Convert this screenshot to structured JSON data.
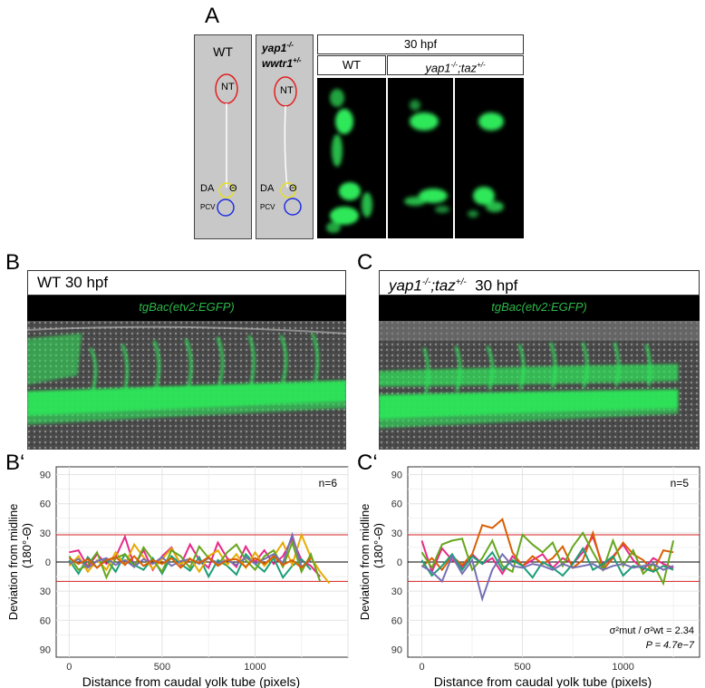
{
  "panelA": {
    "letter": "A",
    "wt_schematic": {
      "title": "WT",
      "nt": "NT",
      "da": "DA",
      "theta": "Θ",
      "pcv": "PCV"
    },
    "mut_schematic": {
      "title_line1": "yap1",
      "title_line1_sup": "-/-",
      "title_line2": "wwtr1",
      "title_line2_sup": "+/-",
      "nt": "NT",
      "da": "DA",
      "theta": "Θ",
      "pcv": "PCV"
    },
    "stage_header": "30 hpf",
    "col_wt": "WT",
    "col_mut_base": "yap1",
    "col_mut_sup1": "-/-",
    "col_mut_mid": ";taz",
    "col_mut_sup2": "+/-"
  },
  "panelB": {
    "letter": "B",
    "title": "WT  30 hpf",
    "transgene": "tgBac(etv2:EGFP)"
  },
  "panelC": {
    "letter": "C",
    "title_gene": "yap1",
    "title_sup1": "-/-",
    "title_mid": ";taz",
    "title_sup2": "+/-",
    "title_stage": "  30 hpf",
    "transgene": "tgBac(etv2:EGFP)"
  },
  "colors": {
    "green": "#2ee85a",
    "red_line": "#d62020",
    "grid": "#e6e6e6"
  },
  "chart_data": [
    {
      "letter": "B‘",
      "type": "line",
      "n_label": "n=6",
      "xlabel": "Distance from caudal yolk tube (pixels)",
      "ylabel_line1": "Deviation from midline",
      "ylabel_line2": "(180°-Θ)",
      "xlim": [
        -70,
        1500
      ],
      "ylim": [
        -98,
        98
      ],
      "xticks": [
        0,
        500,
        1000
      ],
      "yticks": [
        -90,
        -60,
        -30,
        0,
        30,
        60,
        90
      ],
      "ytick_labels": [
        "90",
        "60",
        "30",
        "0",
        "30",
        "60",
        "90"
      ],
      "hlines": [
        28,
        -20
      ],
      "series": [
        {
          "name": "s1",
          "color": "#e7298a",
          "x": [
            0,
            50,
            100,
            150,
            200,
            250,
            300,
            350,
            400,
            450,
            500,
            550,
            600,
            650,
            700,
            750,
            800,
            850,
            900,
            950,
            1000,
            1050,
            1100,
            1150,
            1200,
            1250,
            1300,
            1350
          ],
          "values": [
            10,
            12,
            -5,
            8,
            -2,
            5,
            26,
            -4,
            12,
            -8,
            6,
            15,
            -3,
            18,
            2,
            -6,
            20,
            4,
            -5,
            16,
            0,
            12,
            -2,
            6,
            24,
            2,
            -4,
            -15
          ]
        },
        {
          "name": "s2",
          "color": "#1b9e77",
          "x": [
            0,
            50,
            100,
            150,
            200,
            250,
            300,
            350,
            400,
            450,
            500,
            550,
            600,
            650,
            700,
            750,
            800,
            850,
            900,
            950,
            1000,
            1050,
            1100,
            1150,
            1200,
            1250,
            1300
          ],
          "values": [
            2,
            -12,
            5,
            -6,
            3,
            -10,
            8,
            -3,
            -8,
            4,
            -12,
            6,
            -2,
            -9,
            5,
            -15,
            2,
            -4,
            -13,
            8,
            -2,
            -10,
            4,
            -16,
            -4,
            3,
            -8
          ]
        },
        {
          "name": "s3",
          "color": "#e6ab02",
          "x": [
            0,
            50,
            100,
            150,
            200,
            250,
            300,
            350,
            400,
            450,
            500,
            550,
            600,
            650,
            700,
            750,
            800,
            850,
            900,
            950,
            1000,
            1050,
            1100,
            1150,
            1200,
            1250,
            1300,
            1350,
            1400
          ],
          "values": [
            -4,
            6,
            -10,
            2,
            -8,
            10,
            -3,
            18,
            5,
            -7,
            3,
            14,
            -2,
            4,
            -10,
            6,
            12,
            -3,
            8,
            -6,
            10,
            -4,
            6,
            20,
            -3,
            28,
            5,
            -10,
            -22
          ]
        },
        {
          "name": "s4",
          "color": "#66a61e",
          "x": [
            0,
            50,
            100,
            150,
            200,
            250,
            300,
            350,
            400,
            450,
            500,
            550,
            600,
            650,
            700,
            750,
            800,
            850,
            900,
            950,
            1000,
            1050,
            1100,
            1150,
            1200,
            1250,
            1300,
            1350
          ],
          "values": [
            6,
            -8,
            -3,
            10,
            -16,
            4,
            8,
            -5,
            15,
            2,
            -10,
            12,
            6,
            -6,
            16,
            4,
            -3,
            10,
            18,
            2,
            -8,
            6,
            12,
            -5,
            20,
            -10,
            8,
            -20
          ]
        },
        {
          "name": "s5",
          "color": "#7570b3",
          "x": [
            0,
            50,
            100,
            150,
            200,
            250,
            300,
            350,
            400,
            450,
            500,
            550,
            600,
            650,
            700,
            750,
            800,
            850,
            900,
            950,
            1000,
            1050,
            1100,
            1150,
            1200,
            1250,
            1300
          ],
          "values": [
            -2,
            3,
            -6,
            1,
            4,
            -3,
            2,
            -5,
            3,
            -2,
            5,
            -4,
            1,
            3,
            -2,
            4,
            -1,
            2,
            -3,
            5,
            -2,
            3,
            8,
            -1,
            28,
            -5,
            2
          ]
        },
        {
          "name": "s6",
          "color": "#d95f02",
          "x": [
            0,
            50,
            100,
            150,
            200,
            250,
            300,
            350,
            400,
            450,
            500,
            550,
            600,
            650,
            700,
            750,
            800,
            850,
            900,
            950,
            1000,
            1050,
            1100,
            1150,
            1200,
            1250,
            1300
          ],
          "values": [
            4,
            -2,
            3,
            -6,
            2,
            5,
            -3,
            6,
            -4,
            2,
            -2,
            4,
            -6,
            3,
            -1,
            5,
            -4,
            2,
            3,
            -5,
            4,
            -2,
            6,
            -3,
            2,
            -6,
            4
          ]
        }
      ]
    },
    {
      "letter": "C‘",
      "type": "line",
      "n_label": "n=5",
      "xlabel": "Distance from caudal yolk tube (pixels)",
      "ylabel_line1": "Deviation from midline",
      "ylabel_line2": "(180°-Θ)",
      "xlim": [
        -70,
        1380
      ],
      "ylim": [
        -98,
        98
      ],
      "xticks": [
        0,
        500,
        1000
      ],
      "yticks": [
        -90,
        -60,
        -30,
        0,
        30,
        60,
        90
      ],
      "ytick_labels": [
        "90",
        "60",
        "30",
        "0",
        "30",
        "60",
        "90"
      ],
      "hlines": [
        28,
        -20
      ],
      "stats_line1": "σ²mut / σ²wt = 2.34",
      "stats_line2": "P = 4.7e−7",
      "series": [
        {
          "name": "s1",
          "color": "#e7298a",
          "x": [
            0,
            50,
            100,
            150,
            200,
            250,
            300,
            350,
            400,
            450,
            500,
            550,
            600,
            650,
            700,
            750,
            800,
            850,
            900,
            950,
            1000,
            1050,
            1100,
            1150,
            1200,
            1250
          ],
          "values": [
            22,
            -10,
            14,
            2,
            -5,
            8,
            -2,
            4,
            -12,
            6,
            -4,
            2,
            8,
            -6,
            4,
            -2,
            10,
            26,
            -4,
            6,
            18,
            2,
            -8,
            4,
            -2,
            -6
          ]
        },
        {
          "name": "s2",
          "color": "#d95f02",
          "x": [
            0,
            50,
            100,
            150,
            200,
            250,
            300,
            350,
            400,
            450,
            500,
            550,
            600,
            650,
            700,
            750,
            800,
            850,
            900,
            950,
            1000,
            1050,
            1100,
            1150,
            1200,
            1250
          ],
          "values": [
            -5,
            4,
            -8,
            6,
            -3,
            8,
            38,
            35,
            44,
            10,
            -4,
            6,
            -2,
            4,
            16,
            -6,
            2,
            30,
            -8,
            4,
            20,
            8,
            2,
            -10,
            12,
            10
          ]
        },
        {
          "name": "s3",
          "color": "#66a61e",
          "x": [
            0,
            50,
            100,
            150,
            200,
            250,
            300,
            350,
            400,
            450,
            500,
            550,
            600,
            650,
            700,
            750,
            800,
            850,
            900,
            950,
            1000,
            1050,
            1100,
            1150,
            1200,
            1250
          ],
          "values": [
            10,
            -6,
            18,
            22,
            24,
            -8,
            4,
            22,
            -4,
            -10,
            28,
            18,
            10,
            20,
            -4,
            16,
            30,
            10,
            -8,
            22,
            -4,
            12,
            -12,
            -2,
            -22,
            22
          ]
        },
        {
          "name": "s4",
          "color": "#1b9e77",
          "x": [
            0,
            50,
            100,
            150,
            200,
            250,
            300,
            350,
            400,
            450,
            500,
            550,
            600,
            650,
            700,
            750,
            800,
            850,
            900,
            950,
            1000,
            1050,
            1100,
            1150,
            1200,
            1250
          ],
          "values": [
            2,
            -14,
            -4,
            8,
            -8,
            6,
            -2,
            10,
            -8,
            2,
            -4,
            -16,
            0,
            -6,
            -14,
            -2,
            14,
            -8,
            -2,
            6,
            -14,
            -4,
            -6,
            -10,
            -4,
            -8
          ]
        },
        {
          "name": "s5",
          "color": "#7570b3",
          "x": [
            0,
            50,
            100,
            150,
            200,
            250,
            300,
            350,
            400,
            450,
            500,
            550,
            600,
            650,
            700,
            750,
            800,
            850,
            900,
            950,
            1000,
            1050,
            1100,
            1150,
            1200,
            1250
          ],
          "values": [
            -4,
            -10,
            -20,
            6,
            -12,
            2,
            -38,
            -8,
            8,
            -4,
            -6,
            -2,
            -4,
            -8,
            -2,
            -6,
            -4,
            -2,
            -8,
            -4,
            -2,
            -6,
            -4,
            -2,
            -8,
            -4
          ]
        }
      ]
    }
  ]
}
